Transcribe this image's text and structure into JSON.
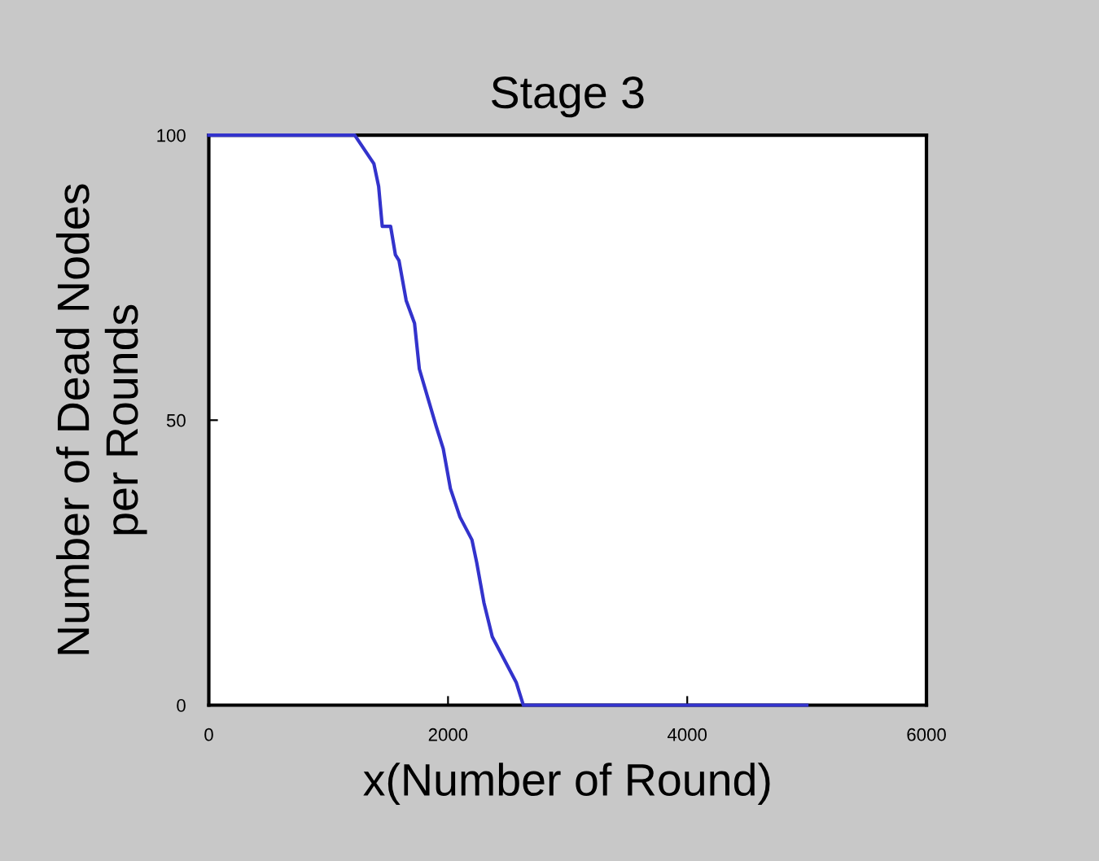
{
  "chart_data": {
    "type": "line",
    "title": "Stage 3",
    "xlabel": "x(Number of Round)",
    "ylabel": "Number of Dead Nodes\nper Rounds",
    "x": [
      0,
      1220,
      1380,
      1420,
      1450,
      1520,
      1560,
      1590,
      1650,
      1720,
      1760,
      1830,
      1900,
      1960,
      2020,
      2100,
      2200,
      2240,
      2300,
      2370,
      2470,
      2570,
      2630,
      5000
    ],
    "values": [
      100,
      100,
      95,
      91,
      84,
      84,
      79,
      78,
      71,
      67,
      59,
      54,
      49,
      45,
      38,
      33,
      29,
      25,
      18,
      12,
      8,
      4,
      0,
      0
    ],
    "color": "#3333cc",
    "xlim": [
      0,
      6000
    ],
    "ylim": [
      0,
      100
    ],
    "xticks": [
      0,
      2000,
      4000,
      6000
    ],
    "yticks": [
      0,
      50,
      100
    ],
    "grid": false,
    "marker": "none",
    "line_style": "solid"
  }
}
